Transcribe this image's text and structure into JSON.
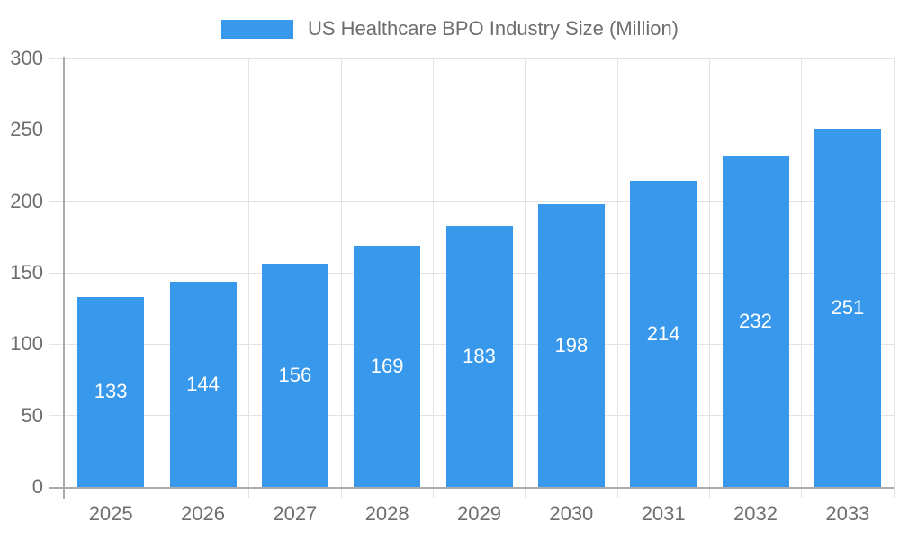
{
  "chart_data": {
    "type": "bar",
    "title": "US Healthcare BPO Industry Size (Million)",
    "legend": {
      "position": "top",
      "label": "US Healthcare BPO Industry Size (Million)"
    },
    "categories": [
      "2025",
      "2026",
      "2027",
      "2028",
      "2029",
      "2030",
      "2031",
      "2032",
      "2033"
    ],
    "series": [
      {
        "name": "US Healthcare BPO Industry Size (Million)",
        "values": [
          133,
          144,
          156,
          169,
          183,
          198,
          214,
          232,
          251
        ]
      }
    ],
    "value_labels": [
      "133",
      "144",
      "156",
      "169",
      "183",
      "198",
      "214",
      "232",
      "251"
    ],
    "xlabel": "",
    "ylabel": "",
    "ylim": [
      0,
      300
    ],
    "ytick_step": 50,
    "ytick_labels": [
      "0",
      "50",
      "100",
      "150",
      "200",
      "250",
      "300"
    ],
    "grid": true,
    "colors": {
      "bar": "#3899EC",
      "value_label": "#FFFFFF",
      "grid_line": "#E3E3E3",
      "axis_line": "#ABABAB",
      "tick_label": "#6E6E6E",
      "legend_text": "#6E6E6E",
      "background": "#FFFFFF"
    }
  }
}
